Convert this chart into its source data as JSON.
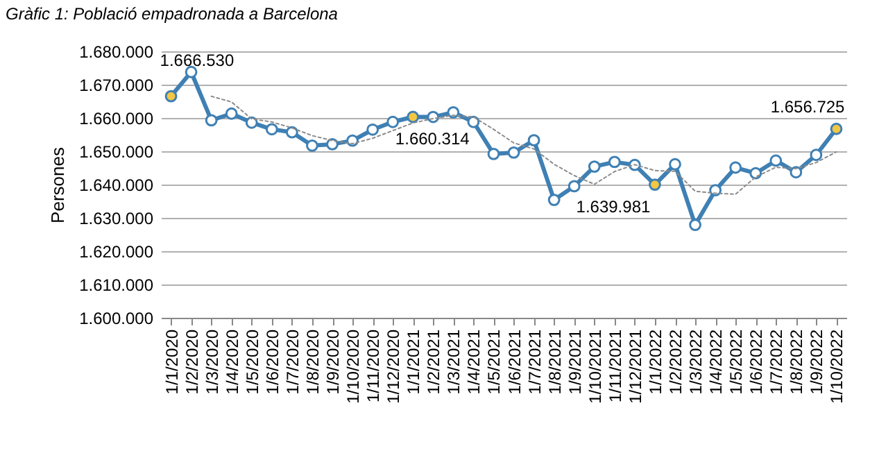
{
  "chart_data": {
    "type": "line",
    "title": "Gràfic 1: Població empadronada a Barcelona",
    "ylabel": "Persones",
    "categories": [
      "1/1/2020",
      "1/2/2020",
      "1/3/2020",
      "1/4/2020",
      "1/5/2020",
      "1/6/2020",
      "1/7/2020",
      "1/8/2020",
      "1/9/2020",
      "1/10/2020",
      "1/11/2020",
      "1/12/2020",
      "1/1/2021",
      "1/2/2021",
      "1/3/2021",
      "1/4/2021",
      "1/5/2021",
      "1/6/2021",
      "1/7/2021",
      "1/8/2021",
      "1/9/2021",
      "1/10/2021",
      "1/11/2021",
      "1/12/2021",
      "1/1/2022",
      "1/2/2022",
      "1/3/2022",
      "1/4/2022",
      "1/5/2022",
      "1/6/2022",
      "1/7/2022",
      "1/8/2022",
      "1/9/2022",
      "1/10/2022"
    ],
    "series": [
      {
        "color": "#3f80b4",
        "marker": "circle",
        "line_style": "solid",
        "values": [
          1666530,
          1673800,
          1659300,
          1661300,
          1658600,
          1656600,
          1655700,
          1651700,
          1652100,
          1653200,
          1656500,
          1658800,
          1660314,
          1660300,
          1661700,
          1658800,
          1649200,
          1649600,
          1653300,
          1635400,
          1639500,
          1645400,
          1646800,
          1645900,
          1639981,
          1646100,
          1627900,
          1638300,
          1645100,
          1643400,
          1647200,
          1643700,
          1648900,
          1656725
        ],
        "colors": [
          "#f2c744",
          "#ffffff",
          "#ffffff",
          "#ffffff",
          "#ffffff",
          "#ffffff",
          "#ffffff",
          "#ffffff",
          "#ffffff",
          "#ffffff",
          "#ffffff",
          "#ffffff",
          "#f2c744",
          "#ffffff",
          "#ffffff",
          "#ffffff",
          "#ffffff",
          "#ffffff",
          "#ffffff",
          "#ffffff",
          "#ffffff",
          "#ffffff",
          "#ffffff",
          "#ffffff",
          "#f2c744",
          "#ffffff",
          "#ffffff",
          "#ffffff",
          "#ffffff",
          "#ffffff",
          "#ffffff",
          "#ffffff",
          "#ffffff",
          "#f2c744"
        ],
        "value_labels": [
          "1.666.530",
          null,
          null,
          null,
          null,
          null,
          null,
          null,
          null,
          null,
          null,
          null,
          "1.660.314",
          null,
          null,
          null,
          null,
          null,
          null,
          null,
          null,
          null,
          null,
          null,
          "1.639.981",
          null,
          null,
          null,
          null,
          null,
          null,
          null,
          null,
          "1.656.725"
        ]
      },
      {
        "color": "#8c8c8c",
        "marker": "none",
        "line_style": "dotted",
        "values": [
          null,
          null,
          1666500,
          1664800,
          1659700,
          1658800,
          1657000,
          1654700,
          1653200,
          1652300,
          1653900,
          1656200,
          1658500,
          1659800,
          1660800,
          1660300,
          1656600,
          1652500,
          1650700,
          1646100,
          1642700,
          1640100,
          1643900,
          1646000,
          1644200,
          1644000,
          1638000,
          1637400,
          1637100,
          1642300,
          1645200,
          1644800,
          1646600,
          1649800
        ]
      }
    ],
    "ylim": [
      1600000,
      1680000
    ],
    "yticks": [
      {
        "value": 1600000,
        "label": "1.600.000"
      },
      {
        "value": 1610000,
        "label": "1.610.000"
      },
      {
        "value": 1620000,
        "label": "1.620.000"
      },
      {
        "value": 1630000,
        "label": "1.630.000"
      },
      {
        "value": 1640000,
        "label": "1.640.000"
      },
      {
        "value": 1650000,
        "label": "1.650.000"
      },
      {
        "value": 1660000,
        "label": "1.660.000"
      },
      {
        "value": 1670000,
        "label": "1.670.000"
      },
      {
        "value": 1680000,
        "label": "1.680.000"
      }
    ],
    "grid": "y"
  }
}
